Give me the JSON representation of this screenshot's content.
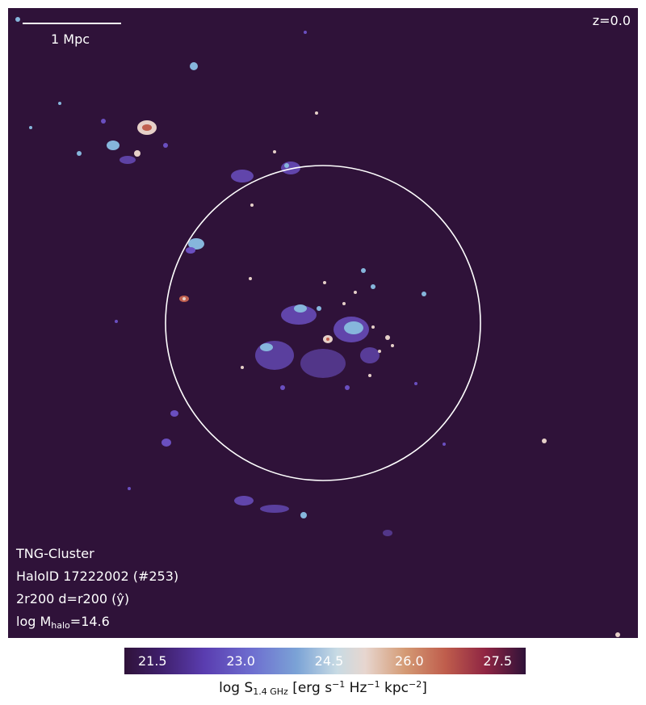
{
  "panel": {
    "scale_bar_label": "1 Mpc",
    "redshift_label": "z=0.0",
    "info": {
      "line1": "TNG-Cluster",
      "line2": "HaloID 17222002 (#253)",
      "line3": "2r200 d=r200 (ŷ)",
      "line4_prefix": "log M",
      "line4_sub": "halo",
      "line4_suffix": "=14.6"
    }
  },
  "colorbar": {
    "ticks": [
      "21.5",
      "23.0",
      "24.5",
      "26.0",
      "27.5"
    ],
    "label_prefix": "log S",
    "label_sub": "1.4 GHz",
    "label_units_a": " [erg s",
    "label_sup1": "−1",
    "label_units_b": " Hz",
    "label_sup2": "−1",
    "label_units_c": " kpc",
    "label_sup3": "−2",
    "label_units_d": "]"
  },
  "colors": {
    "background": "#2f1239",
    "low_emission": "#6a4fc0",
    "mid_emission": "#86b6dc",
    "high_emission": "#e9e3e3",
    "peak_emission": "#c0604f"
  }
}
